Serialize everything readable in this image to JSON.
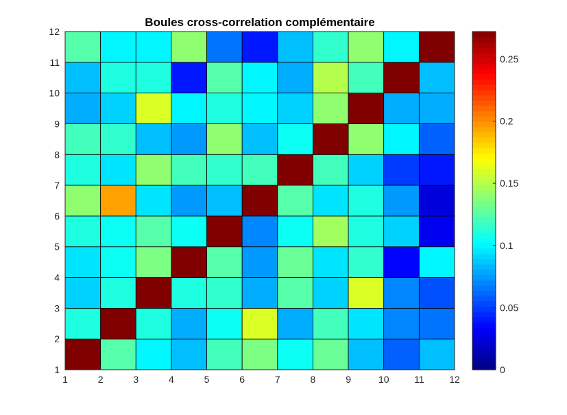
{
  "chart_data": {
    "type": "heatmap",
    "title": "Boules cross-correlation complémentaire",
    "xlabel": "",
    "ylabel": "",
    "x_ticks": [
      1,
      2,
      3,
      4,
      5,
      6,
      7,
      8,
      9,
      10,
      11,
      12
    ],
    "y_ticks": [
      1,
      2,
      3,
      4,
      5,
      6,
      7,
      8,
      9,
      10,
      11,
      12
    ],
    "xlim": [
      1,
      12
    ],
    "ylim": [
      1,
      12
    ],
    "colormap": "jet",
    "clim": [
      0,
      0.272
    ],
    "colorbar": {
      "ticks": [
        0,
        0.05,
        0.1,
        0.15,
        0.2,
        0.25
      ],
      "tick_labels": [
        "0",
        "0.05",
        "0.1",
        "0.15",
        "0.2",
        "0.25"
      ],
      "placement": "right"
    },
    "values": [
      [
        0.272,
        0.125,
        0.1,
        0.085,
        0.12,
        0.135,
        0.105,
        0.13,
        0.085,
        0.06,
        0.085
      ],
      [
        0.11,
        0.272,
        0.11,
        0.08,
        0.105,
        0.16,
        0.08,
        0.12,
        0.095,
        0.07,
        0.065
      ],
      [
        0.09,
        0.11,
        0.272,
        0.11,
        0.115,
        0.08,
        0.125,
        0.09,
        0.16,
        0.07,
        0.055
      ],
      [
        0.095,
        0.105,
        0.135,
        0.272,
        0.125,
        0.075,
        0.13,
        0.095,
        0.115,
        0.035,
        0.1
      ],
      [
        0.11,
        0.105,
        0.125,
        0.105,
        0.272,
        0.07,
        0.105,
        0.145,
        0.11,
        0.09,
        0.03
      ],
      [
        0.14,
        0.195,
        0.095,
        0.075,
        0.085,
        0.272,
        0.125,
        0.095,
        0.11,
        0.075,
        0.025
      ],
      [
        0.11,
        0.095,
        0.14,
        0.12,
        0.115,
        0.12,
        0.272,
        0.12,
        0.09,
        0.05,
        0.04
      ],
      [
        0.12,
        0.115,
        0.085,
        0.075,
        0.14,
        0.085,
        0.105,
        0.272,
        0.14,
        0.1,
        0.06
      ],
      [
        0.08,
        0.09,
        0.16,
        0.1,
        0.11,
        0.1,
        0.09,
        0.14,
        0.272,
        0.08,
        0.08
      ],
      [
        0.085,
        0.11,
        0.11,
        0.04,
        0.125,
        0.1,
        0.08,
        0.15,
        0.12,
        0.272,
        0.085
      ],
      [
        0.125,
        0.1,
        0.1,
        0.14,
        0.065,
        0.04,
        0.085,
        0.115,
        0.14,
        0.1,
        0.272
      ]
    ]
  }
}
